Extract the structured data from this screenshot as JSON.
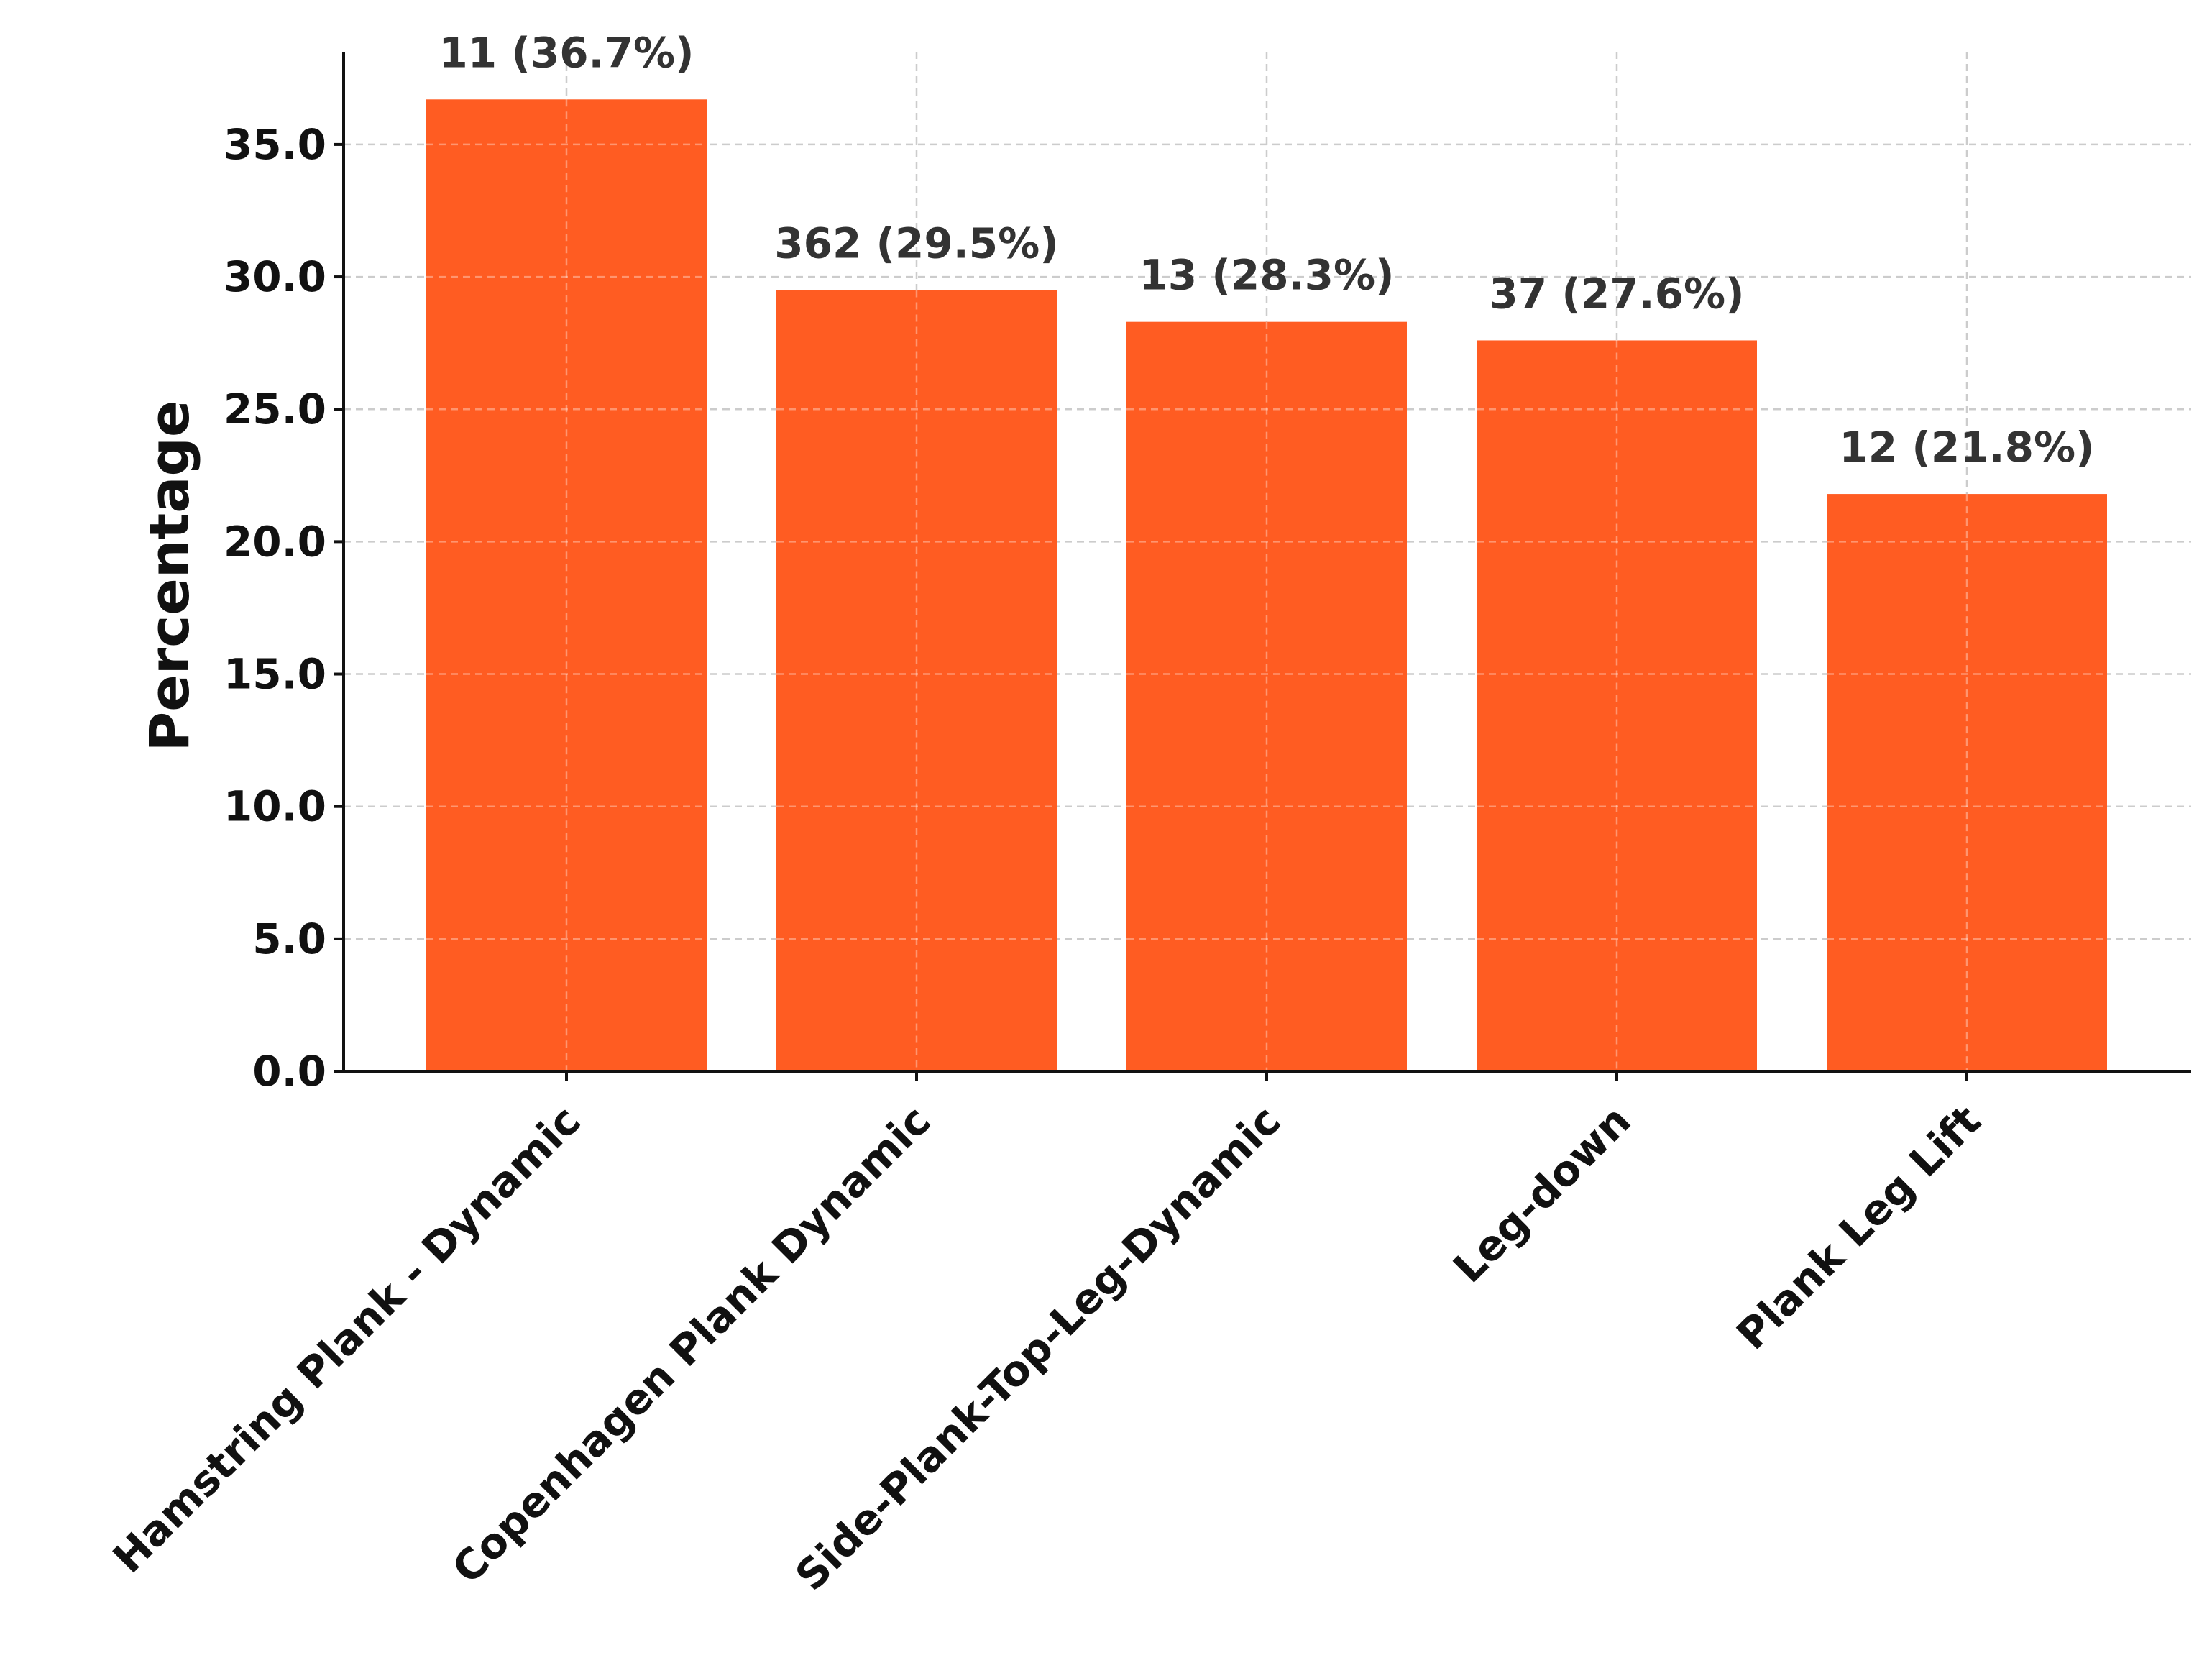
{
  "chart_data": {
    "type": "bar",
    "title": "",
    "xlabel": "",
    "ylabel": "Percentage",
    "categories": [
      "Hamstring Plank - Dynamic",
      "Copenhagen Plank Dynamic",
      "Side-Plank-Top-Leg-Dynamic",
      "Leg-down",
      "Plank Leg Lift"
    ],
    "values": [
      36.7,
      29.5,
      28.3,
      27.6,
      21.8
    ],
    "data_labels": [
      "11 (36.7%)",
      "362 (29.5%)",
      "13 (28.3%)",
      "37 (27.6%)",
      "12 (21.8%)"
    ],
    "ylim": [
      0,
      38.5
    ],
    "yticks": [
      0,
      5,
      10,
      15,
      20,
      25,
      30,
      35
    ],
    "ytick_labels": [
      "0.0",
      "5.0",
      "10.0",
      "15.0",
      "20.0",
      "25.0",
      "30.0",
      "35.0"
    ],
    "grid": true,
    "colors": {
      "bar": "#FF5C22",
      "grid": "#cccccc",
      "axis": "#111111",
      "label": "#333333"
    }
  }
}
